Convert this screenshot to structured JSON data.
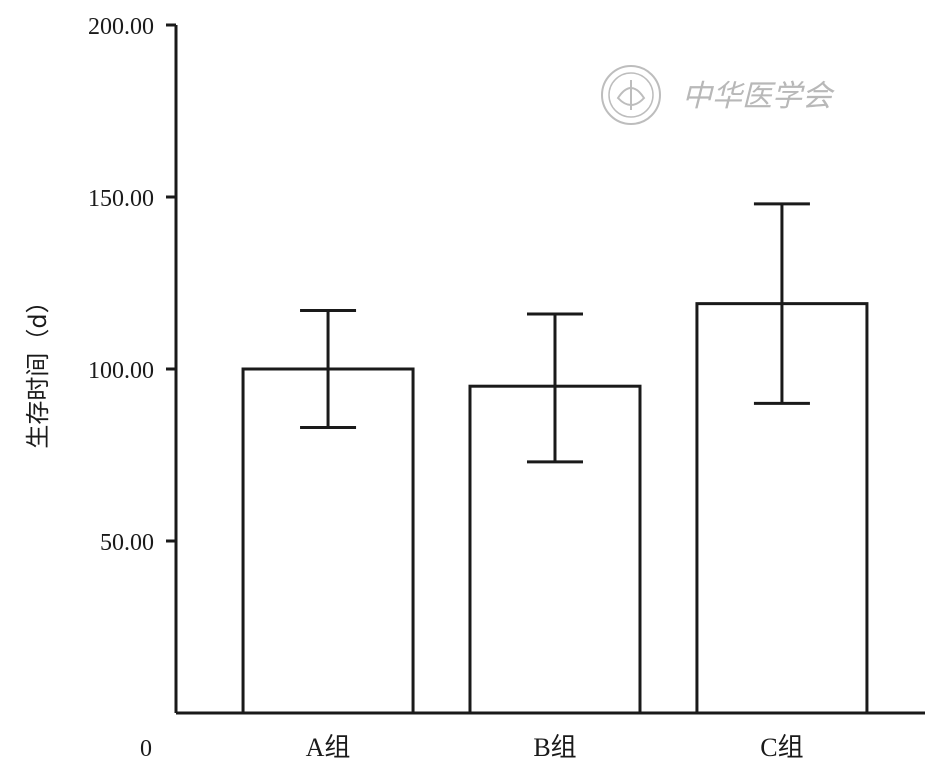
{
  "chart_data": {
    "type": "bar",
    "categories": [
      "A组",
      "B组",
      "C组"
    ],
    "values": [
      100,
      95,
      119
    ],
    "error_upper": [
      117,
      116,
      148
    ],
    "error_lower": [
      83,
      73,
      90
    ],
    "ylabel": "生存时间（d）",
    "ylim": [
      0,
      200
    ],
    "yticks": [
      "50.00",
      "100.00",
      "150.00",
      "200.00"
    ],
    "ytick_values": [
      50,
      100,
      150,
      200
    ],
    "origin_label": "0",
    "grid": false,
    "bar_fill": "#ffffff",
    "stroke_color": "#1a1a1a"
  },
  "watermark": {
    "text": "中华医学会",
    "icon": "society-seal-icon"
  }
}
